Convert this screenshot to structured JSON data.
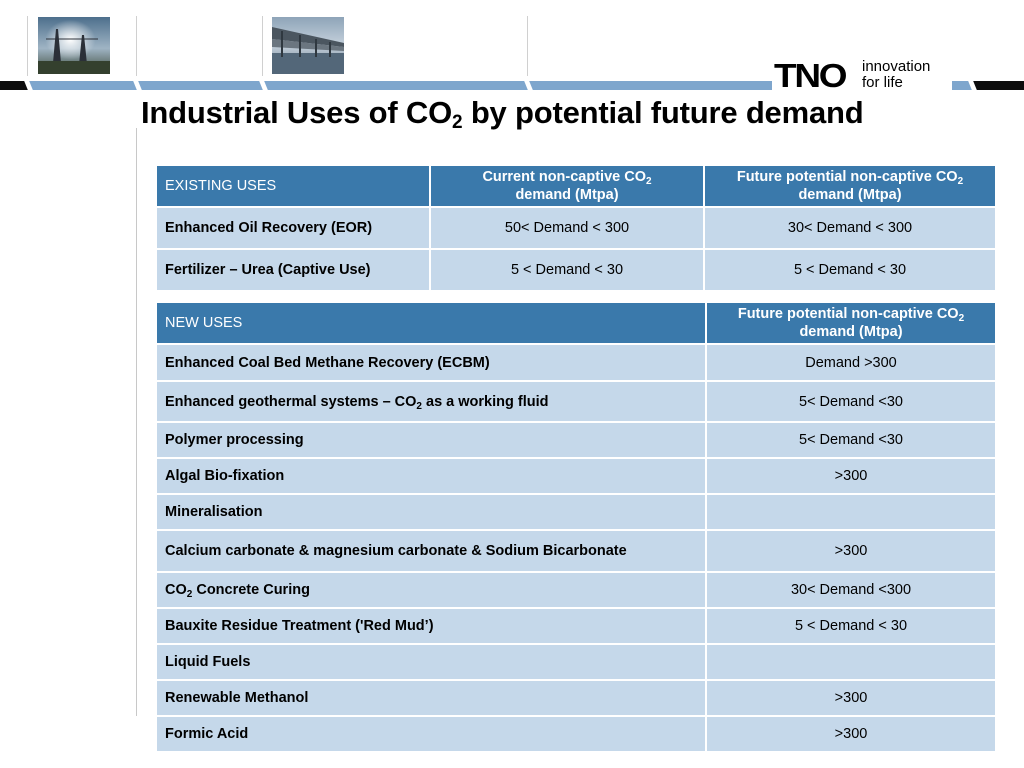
{
  "slide": {
    "title_pre": "Industrial Uses of CO",
    "title_sub": "2",
    "title_post": " by potential future demand"
  },
  "logo": {
    "mark": "TNO",
    "tag_line1": "innovation",
    "tag_line2": "for life"
  },
  "colors": {
    "header_fill": "#3a79ab",
    "cell_fill": "#c5d8ea",
    "band_blue": "#7ea6cd"
  },
  "existing_table": {
    "header_label": "EXISTING USES",
    "col1_pre": "Current non-captive CO",
    "col1_sub": "2",
    "col1_post": "demand (Mtpa)",
    "col2_pre": "Future potential non-captive CO",
    "col2_sub": "2",
    "col2_post": "demand (Mtpa)",
    "rows": [
      {
        "label": "Enhanced Oil Recovery (EOR)",
        "current": "50< Demand < 300",
        "future": "30< Demand < 300"
      },
      {
        "label": "Fertilizer – Urea (Captive Use)",
        "current": "5 < Demand < 30",
        "future": "5 < Demand < 30"
      }
    ]
  },
  "new_table": {
    "header_label": "NEW USES",
    "col_pre": "Future potential non-captive CO",
    "col_sub": "2",
    "col_post": "demand (Mtpa)",
    "rows": [
      {
        "label": "Enhanced Coal Bed Methane Recovery (ECBM)",
        "value": "Demand >300"
      },
      {
        "label_pre": "Enhanced geothermal systems – CO",
        "label_sub": "2",
        "label_post": " as a working fluid",
        "value": "5< Demand <30"
      },
      {
        "label": "Polymer processing",
        "value": "5< Demand <30"
      },
      {
        "label": "Algal Bio-fixation",
        "value": ">300"
      },
      {
        "label": "Mineralisation",
        "value": ""
      },
      {
        "label": "Calcium carbonate & magnesium carbonate & Sodium Bicarbonate",
        "value": ">300"
      },
      {
        "label_pre": "CO",
        "label_sub": "2",
        "label_post": " Concrete Curing",
        "value": "30< Demand <300"
      },
      {
        "label": "Bauxite Residue Treatment ('Red Mud’)",
        "value": "5 < Demand < 30"
      },
      {
        "label": "Liquid Fuels",
        "value": ""
      },
      {
        "label": "Renewable Methanol",
        "value": ">300"
      },
      {
        "label": "Formic Acid",
        "value": ">300"
      }
    ]
  }
}
